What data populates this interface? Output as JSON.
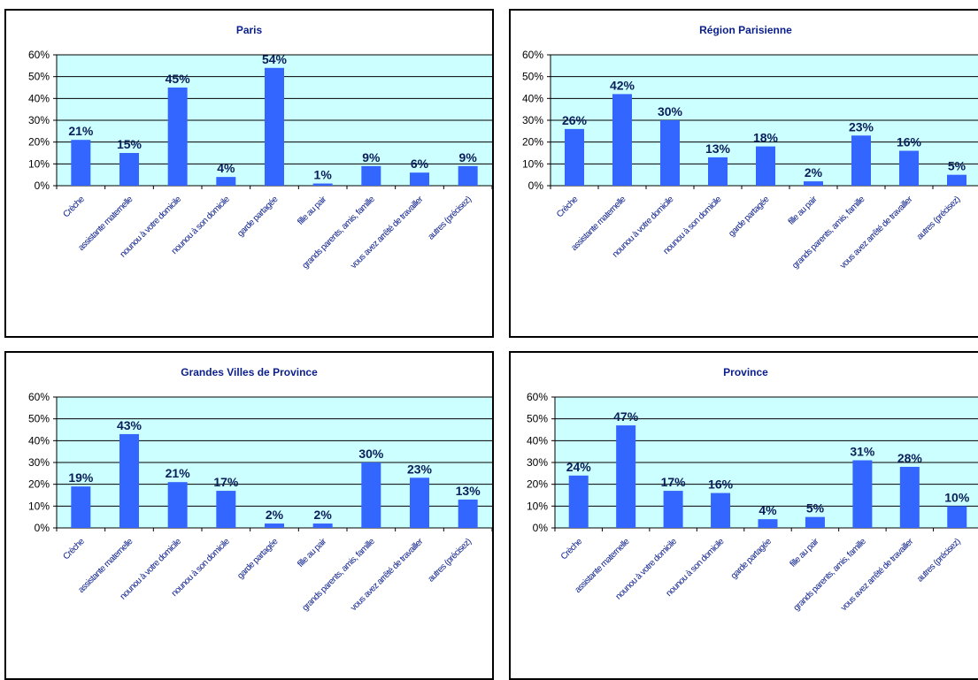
{
  "colors": {
    "plot_background": "#ccffff",
    "bar": "#3366ff",
    "title": "#0a1e8c",
    "category_label": "#0a1e8c",
    "data_label": "#0a1e5a",
    "gridline": "#000000"
  },
  "chart_data": [
    {
      "type": "bar",
      "title": "Paris",
      "categories": [
        "Crèche",
        "assistante maternelle",
        "nounou à votre domicile",
        "nounou à son domicile",
        "garde partagée",
        "fille au pair",
        "grands parents, amis, famille",
        "vous avez arrêté de travailler",
        "autres (précisez)"
      ],
      "values": [
        21,
        15,
        45,
        4,
        54,
        1,
        9,
        6,
        9
      ],
      "value_labels": [
        "21%",
        "15%",
        "45%",
        "4%",
        "54%",
        "1%",
        "9%",
        "6%",
        "9%"
      ],
      "yticks": [
        "0%",
        "10%",
        "20%",
        "30%",
        "40%",
        "50%",
        "60%"
      ],
      "ylim": [
        0,
        60
      ],
      "grid": true,
      "xlabel": "",
      "ylabel": ""
    },
    {
      "type": "bar",
      "title": "Région Parisienne",
      "categories": [
        "Crèche",
        "assistante maternelle",
        "nounou à votre domicile",
        "nounou à son domicile",
        "garde partagée",
        "fille au pair",
        "grands parents, amis, famille",
        "vous avez arrêté de travailler",
        "autres (précisez)"
      ],
      "values": [
        26,
        42,
        30,
        13,
        18,
        2,
        23,
        16,
        5
      ],
      "value_labels": [
        "26%",
        "42%",
        "30%",
        "13%",
        "18%",
        "2%",
        "23%",
        "16%",
        "5%"
      ],
      "yticks": [
        "0%",
        "10%",
        "20%",
        "30%",
        "40%",
        "50%",
        "60%"
      ],
      "ylim": [
        0,
        60
      ],
      "grid": true,
      "xlabel": "",
      "ylabel": ""
    },
    {
      "type": "bar",
      "title": "Grandes Villes de Province",
      "categories": [
        "Crèche",
        "assistante maternelle",
        "nounou à votre domicile",
        "nounou à son domicile",
        "garde partagée",
        "fille au pair",
        "grands parents, amis, famille",
        "vous avez arrêté de travailler",
        "autres (précisez)"
      ],
      "values": [
        19,
        43,
        21,
        17,
        2,
        2,
        30,
        23,
        13
      ],
      "value_labels": [
        "19%",
        "43%",
        "21%",
        "17%",
        "2%",
        "2%",
        "30%",
        "23%",
        "13%"
      ],
      "yticks": [
        "0%",
        "10%",
        "20%",
        "30%",
        "40%",
        "50%",
        "60%"
      ],
      "ylim": [
        0,
        60
      ],
      "grid": true,
      "xlabel": "",
      "ylabel": ""
    },
    {
      "type": "bar",
      "title": "Province",
      "categories": [
        "Crèche",
        "assistante maternelle",
        "nounou à votre domicile",
        "nounou à son domicile",
        "garde partagée",
        "fille au pair",
        "grands parents, amis, famille",
        "vous avez arrêté de travailler",
        "autres (précisez)"
      ],
      "values": [
        24,
        47,
        17,
        16,
        4,
        5,
        31,
        28,
        10
      ],
      "value_labels": [
        "24%",
        "47%",
        "17%",
        "16%",
        "4%",
        "5%",
        "31%",
        "28%",
        "10%"
      ],
      "yticks": [
        "0%",
        "10%",
        "20%",
        "30%",
        "40%",
        "50%",
        "60%"
      ],
      "ylim": [
        0,
        60
      ],
      "grid": true,
      "xlabel": "",
      "ylabel": ""
    }
  ]
}
